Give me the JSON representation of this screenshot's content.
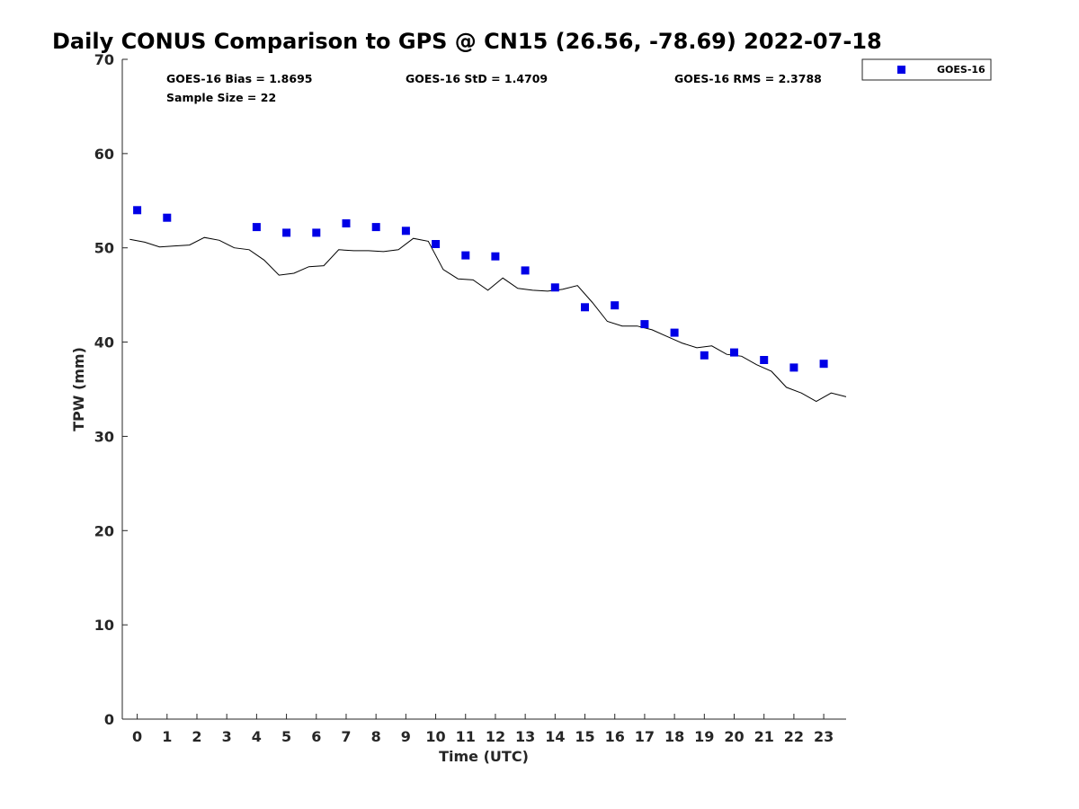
{
  "chart_data": {
    "type": "scatter",
    "title": "Daily CONUS Comparison to GPS @ CN15 (26.56, -78.69) 2022-07-18",
    "xlabel": "Time (UTC)",
    "ylabel": "TPW (mm)",
    "xlim": [
      -0.5,
      23.75
    ],
    "ylim": [
      0,
      70
    ],
    "xticks": [
      0,
      1,
      2,
      3,
      4,
      5,
      6,
      7,
      8,
      9,
      10,
      11,
      12,
      13,
      14,
      15,
      16,
      17,
      18,
      19,
      20,
      21,
      22,
      23
    ],
    "yticks": [
      0,
      10,
      20,
      30,
      40,
      50,
      60,
      70
    ],
    "grid": false,
    "legend_position": "top-right (outside)",
    "stats": {
      "bias": "GOES-16 Bias = 1.8695",
      "std": "GOES-16 StD = 1.4709",
      "rms": "GOES-16 RMS = 2.3788",
      "sample": "Sample Size = 22"
    },
    "series": [
      {
        "name": "GOES-16",
        "kind": "scatter",
        "marker": "square",
        "color": "#0000e6",
        "x": [
          0,
          1,
          4,
          5,
          6,
          7,
          8,
          9,
          10,
          11,
          12,
          13,
          14,
          15,
          16,
          17,
          18,
          19,
          20,
          21,
          22,
          23
        ],
        "y": [
          54.0,
          53.2,
          52.2,
          51.6,
          51.6,
          52.6,
          52.2,
          51.8,
          50.4,
          49.2,
          49.1,
          47.6,
          45.8,
          43.7,
          43.9,
          41.9,
          41.0,
          38.6,
          38.9,
          38.1,
          37.3,
          37.7
        ]
      },
      {
        "kind": "line",
        "color": "#000000",
        "x": [
          -0.25,
          0.25,
          0.75,
          1.25,
          1.75,
          2.25,
          2.75,
          3.25,
          3.75,
          4.25,
          4.75,
          5.25,
          5.75,
          6.25,
          6.75,
          7.25,
          7.75,
          8.25,
          8.75,
          9.25,
          9.75,
          10.25,
          10.75,
          11.25,
          11.75,
          12.25,
          12.75,
          13.25,
          13.75,
          14.25,
          14.75,
          15.25,
          15.75,
          16.25,
          16.75,
          17.25,
          17.75,
          18.25,
          18.75,
          19.25,
          19.75,
          20.25,
          20.75,
          21.25,
          21.75,
          22.25,
          22.75,
          23.25,
          23.75
        ],
        "y": [
          50.9,
          50.6,
          50.1,
          50.2,
          50.3,
          51.1,
          50.8,
          50.0,
          49.8,
          48.7,
          47.1,
          47.3,
          48.0,
          48.1,
          49.8,
          49.7,
          49.7,
          49.6,
          49.8,
          51.0,
          50.7,
          47.7,
          46.7,
          46.6,
          45.5,
          46.8,
          45.7,
          45.5,
          45.4,
          45.6,
          46.0,
          44.2,
          42.2,
          41.7,
          41.7,
          41.3,
          40.6,
          39.9,
          39.4,
          39.6,
          38.7,
          38.5,
          37.6,
          36.9,
          35.2,
          34.6,
          33.7,
          34.6,
          34.2
        ]
      }
    ]
  }
}
